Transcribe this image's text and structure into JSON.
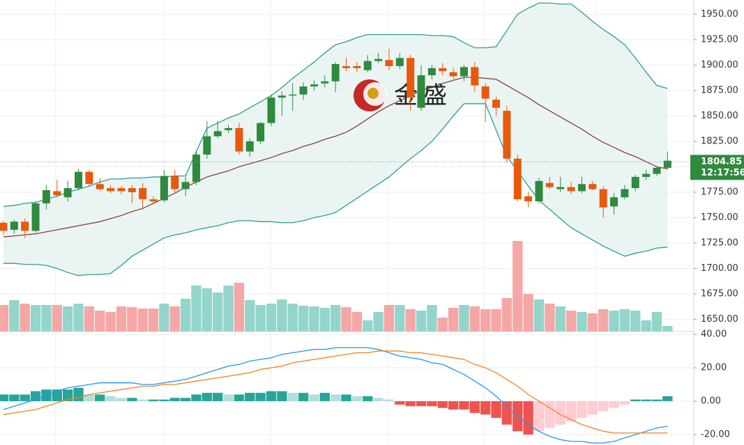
{
  "chart_data": [
    {
      "type": "candlestick",
      "watermark": "金盛",
      "ohlc": [
        [
          1745,
          1747,
          1733,
          1737
        ],
        [
          1738,
          1748,
          1734,
          1746
        ],
        [
          1746,
          1749,
          1730,
          1737
        ],
        [
          1737,
          1766,
          1735,
          1764
        ],
        [
          1764,
          1782,
          1758,
          1777
        ],
        [
          1776,
          1787,
          1770,
          1772
        ],
        [
          1770,
          1786,
          1766,
          1779
        ],
        [
          1779,
          1798,
          1777,
          1795
        ],
        [
          1795,
          1797,
          1781,
          1783
        ],
        [
          1783,
          1789,
          1776,
          1778
        ],
        [
          1779,
          1782,
          1774,
          1776
        ],
        [
          1779,
          1781,
          1773,
          1776
        ],
        [
          1779,
          1782,
          1764,
          1775
        ],
        [
          1779,
          1784,
          1758,
          1768
        ],
        [
          1768,
          1771,
          1764,
          1766
        ],
        [
          1767,
          1797,
          1765,
          1791
        ],
        [
          1791,
          1797,
          1775,
          1778
        ],
        [
          1778,
          1790,
          1771,
          1785
        ],
        [
          1785,
          1815,
          1782,
          1812
        ],
        [
          1812,
          1845,
          1808,
          1830
        ],
        [
          1830,
          1845,
          1828,
          1835
        ],
        [
          1836,
          1841,
          1833,
          1838
        ],
        [
          1838,
          1843,
          1812,
          1815
        ],
        [
          1815,
          1828,
          1810,
          1825
        ],
        [
          1825,
          1844,
          1822,
          1843
        ],
        [
          1843,
          1871,
          1840,
          1868
        ],
        [
          1868,
          1874,
          1850,
          1870
        ],
        [
          1870,
          1882,
          1855,
          1871
        ],
        [
          1871,
          1883,
          1866,
          1879
        ],
        [
          1879,
          1885,
          1875,
          1881
        ],
        [
          1882,
          1890,
          1878,
          1884
        ],
        [
          1884,
          1903,
          1873,
          1901
        ],
        [
          1899,
          1907,
          1894,
          1897
        ],
        [
          1899,
          1903,
          1893,
          1897
        ],
        [
          1895,
          1910,
          1893,
          1904
        ],
        [
          1904,
          1912,
          1902,
          1906
        ],
        [
          1905,
          1916,
          1895,
          1899
        ],
        [
          1899,
          1912,
          1896,
          1907
        ],
        [
          1907,
          1910,
          1855,
          1868
        ],
        [
          1858,
          1900,
          1855,
          1890
        ],
        [
          1890,
          1900,
          1886,
          1897
        ],
        [
          1897,
          1902,
          1890,
          1894
        ],
        [
          1893,
          1897,
          1886,
          1889
        ],
        [
          1889,
          1900,
          1884,
          1898
        ],
        [
          1898,
          1903,
          1874,
          1880
        ],
        [
          1879,
          1882,
          1844,
          1867
        ],
        [
          1866,
          1869,
          1850,
          1858
        ],
        [
          1855,
          1860,
          1804,
          1808
        ],
        [
          1808,
          1812,
          1766,
          1768
        ],
        [
          1771,
          1775,
          1760,
          1766
        ],
        [
          1766,
          1789,
          1764,
          1786
        ],
        [
          1784,
          1790,
          1778,
          1780
        ],
        [
          1778,
          1790,
          1775,
          1780
        ],
        [
          1780,
          1785,
          1773,
          1776
        ],
        [
          1776,
          1790,
          1774,
          1783
        ],
        [
          1783,
          1786,
          1777,
          1778
        ],
        [
          1778,
          1781,
          1750,
          1760
        ],
        [
          1761,
          1774,
          1753,
          1770
        ],
        [
          1770,
          1782,
          1768,
          1778
        ],
        [
          1779,
          1792,
          1776,
          1790
        ],
        [
          1790,
          1797,
          1787,
          1793
        ],
        [
          1793,
          1800,
          1791,
          1799
        ],
        [
          1799,
          1815,
          1797,
          1806
        ]
      ],
      "up_color": "#2f8a3e",
      "down_color": "#e8590c",
      "band_fill": "#eaf5f3",
      "overlays": [
        {
          "color": "#2a9d93",
          "values": [
            1761,
            1762,
            1764,
            1765,
            1768,
            1771,
            1775,
            1778,
            1781,
            1785,
            1788,
            1788,
            1789,
            1789,
            1790,
            1790,
            1791,
            1791,
            1815,
            1838,
            1843,
            1848,
            1852,
            1858,
            1864,
            1870,
            1878,
            1887,
            1895,
            1903,
            1912,
            1920,
            1923,
            1927,
            1930,
            1930,
            1930,
            1930,
            1930,
            1930,
            1929,
            1929,
            1928,
            1922,
            1917,
            1917,
            1918,
            1934,
            1950,
            1956,
            1961,
            1961,
            1960,
            1960,
            1952,
            1943,
            1935,
            1928,
            1920,
            1907,
            1893,
            1880,
            1877
          ]
        },
        {
          "color": "#8d3b36",
          "values": [
            1731,
            1732,
            1733,
            1734,
            1736,
            1738,
            1740,
            1742,
            1744,
            1746,
            1749,
            1752,
            1756,
            1759,
            1764,
            1769,
            1774,
            1780,
            1785,
            1790,
            1793,
            1796,
            1800,
            1803,
            1806,
            1809,
            1813,
            1816,
            1820,
            1823,
            1827,
            1830,
            1834,
            1840,
            1847,
            1854,
            1860,
            1865,
            1870,
            1875,
            1878,
            1882,
            1885,
            1888,
            1888,
            1887,
            1886,
            1880,
            1874,
            1868,
            1861,
            1855,
            1849,
            1843,
            1837,
            1830,
            1824,
            1819,
            1814,
            1810,
            1805,
            1800,
            1798
          ]
        },
        {
          "color": "#2a9d93",
          "values": [
            1705,
            1705,
            1704,
            1704,
            1703,
            1700,
            1696,
            1693,
            1694,
            1694,
            1695,
            1703,
            1712,
            1718,
            1724,
            1730,
            1733,
            1735,
            1738,
            1740,
            1742,
            1745,
            1747,
            1747,
            1746,
            1746,
            1745,
            1745,
            1747,
            1750,
            1752,
            1755,
            1762,
            1769,
            1776,
            1783,
            1790,
            1799,
            1808,
            1816,
            1825,
            1837,
            1850,
            1862,
            1862,
            1862,
            1836,
            1810,
            1796,
            1781,
            1767,
            1758,
            1749,
            1740,
            1734,
            1728,
            1722,
            1717,
            1712,
            1715,
            1717,
            1720,
            1721
          ]
        }
      ],
      "volume": {
        "up_color": "#93d5cb",
        "down_color": "#f5a7a6",
        "values": [
          38,
          45,
          40,
          38,
          38,
          38,
          36,
          40,
          36,
          30,
          28,
          36,
          35,
          33,
          33,
          40,
          36,
          47,
          66,
          62,
          56,
          66,
          70,
          45,
          38,
          40,
          46,
          40,
          37,
          36,
          34,
          38,
          35,
          28,
          16,
          28,
          38,
          38,
          32,
          30,
          38,
          20,
          34,
          38,
          36,
          32,
          32,
          48,
          130,
          54,
          46,
          40,
          36,
          30,
          28,
          26,
          32,
          30,
          32,
          30,
          16,
          28,
          8
        ]
      },
      "ylim": [
        1638,
        1964
      ],
      "yticks": [
        {
          "value": 1650,
          "label": "1650.00"
        },
        {
          "value": 1675,
          "label": "1675.00"
        },
        {
          "value": 1700,
          "label": "1700.00"
        },
        {
          "value": 1725,
          "label": "1725.00"
        },
        {
          "value": 1750,
          "label": "1750.00"
        },
        {
          "value": 1775,
          "label": "1775.00"
        },
        {
          "value": 1800,
          "label": "1800.00"
        },
        {
          "value": 1825,
          "label": "1825.00"
        },
        {
          "value": 1850,
          "label": "1850.00"
        },
        {
          "value": 1875,
          "label": "1875.00"
        },
        {
          "value": 1900,
          "label": "1900.00"
        },
        {
          "value": 1925,
          "label": "1925.00"
        },
        {
          "value": 1950,
          "label": "1950.00"
        }
      ],
      "last_price": 1804.85,
      "last_time": "12:17:56",
      "last_color": "#2f8a3e"
    },
    {
      "type": "macd",
      "histogram": {
        "up_strong": "#26a69a",
        "up_weak": "#b2dfdb",
        "down_strong": "#ef5350",
        "down_weak": "#ffcdd2",
        "values": [
          4,
          4,
          4,
          6,
          7,
          7,
          7,
          8,
          4,
          4,
          3,
          2,
          2,
          1,
          1,
          1,
          2,
          2,
          4,
          5,
          5,
          4,
          4,
          5,
          5,
          6,
          6,
          5,
          5,
          4,
          5,
          4,
          4,
          3,
          3,
          2,
          1,
          -2,
          -3,
          -3,
          -3,
          -4,
          -5,
          -5,
          -7,
          -8,
          -10,
          -14,
          -18,
          -20,
          -18,
          -16,
          -14,
          -12,
          -10,
          -8,
          -6,
          -4,
          -2,
          1,
          1,
          1,
          3
        ]
      },
      "series": [
        {
          "color": "#2196f3",
          "values": [
            -5,
            -3,
            -1,
            1,
            3,
            6,
            8,
            9,
            10,
            11,
            11,
            11,
            11,
            10,
            10,
            11,
            12,
            13,
            15,
            17,
            19,
            21,
            22,
            24,
            25,
            26,
            28,
            29,
            30,
            31,
            31,
            32,
            32,
            32,
            32,
            31,
            29,
            27,
            26,
            25,
            23,
            22,
            19,
            16,
            12,
            8,
            3,
            -3,
            -9,
            -14,
            -18,
            -21,
            -23,
            -24,
            -24,
            -25,
            -25,
            -24,
            -22,
            -20,
            -18,
            -16,
            -15
          ]
        },
        {
          "color": "#f5801f",
          "values": [
            -8,
            -7,
            -6,
            -5,
            -3,
            -1,
            1,
            2,
            4,
            5,
            6,
            7,
            8,
            9,
            9,
            10,
            10,
            11,
            12,
            13,
            14,
            15,
            16,
            17,
            19,
            20,
            21,
            23,
            24,
            25,
            26,
            27,
            28,
            29,
            29,
            30,
            30,
            30,
            29,
            29,
            28,
            27,
            26,
            25,
            22,
            20,
            17,
            13,
            9,
            4,
            0,
            -4,
            -8,
            -11,
            -14,
            -16,
            -18,
            -19,
            -19,
            -19,
            -19,
            -19,
            -19
          ]
        }
      ],
      "ylim": [
        -26.2,
        41.7
      ],
      "yticks": [
        {
          "value": -20,
          "label": "-20.00"
        },
        {
          "value": 0,
          "label": "0.00"
        },
        {
          "value": 20,
          "label": "20.00"
        },
        {
          "value": 40,
          "label": "40.00"
        }
      ]
    }
  ]
}
